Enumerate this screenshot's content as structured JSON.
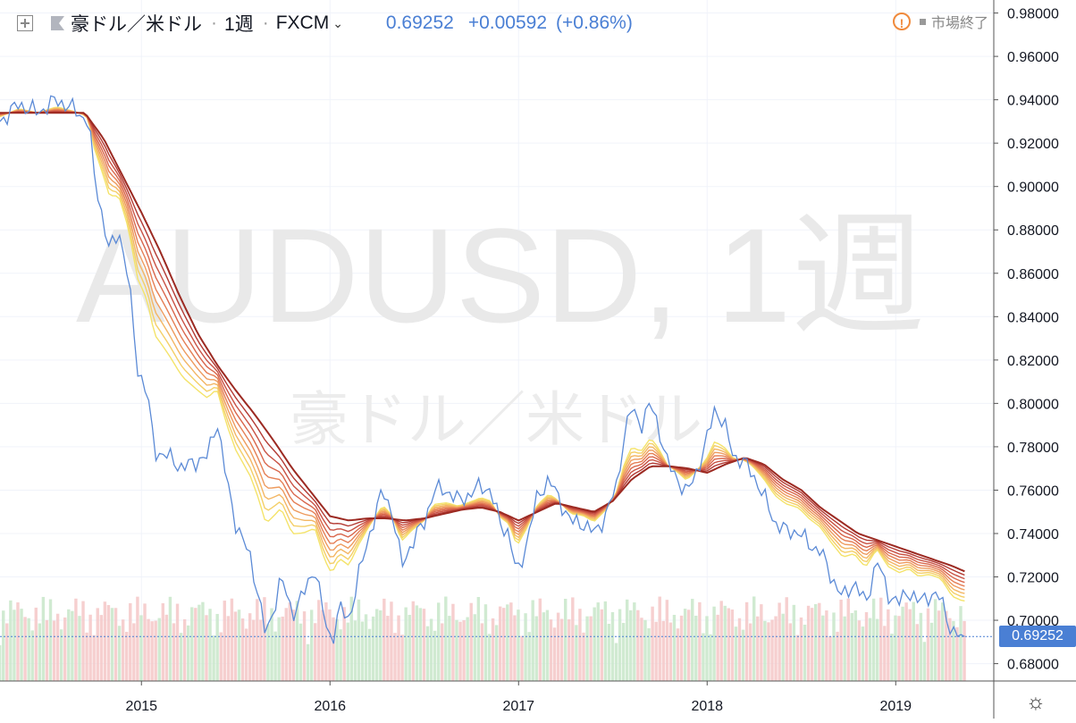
{
  "header": {
    "expand_icon": "square-plus-icon",
    "flag_icon": "flag-icon",
    "symbol": "豪ドル／米ドル",
    "interval": "1週",
    "exchange": "FXCM",
    "dropdown_icon": "chevron-down-icon",
    "last_price": "0.69252",
    "change": "+0.00592",
    "change_pct": "(+0.86%)",
    "market_status": "市場終了",
    "alert_icon": "exclamation-circle-icon"
  },
  "watermark": {
    "line1": "AUDUSD, 1週",
    "line2": "豪ドル／米ドル"
  },
  "settings_icon": "gear-icon",
  "colors": {
    "price": "#5b8ad6",
    "up_volume": "#c8e6c9",
    "down_volume": "#f4c7c7",
    "ribbon": [
      "#f4e36a",
      "#f4cf68",
      "#f3b664",
      "#ee9b5e",
      "#e57f55",
      "#d9674c",
      "#c95244",
      "#b33a33",
      "#9c2a22"
    ]
  },
  "chart_data": {
    "type": "line",
    "x_ticks": [
      "2015",
      "2016",
      "2017",
      "2018",
      "2019"
    ],
    "y_ticks": [
      "0.98000",
      "0.96000",
      "0.94000",
      "0.92000",
      "0.90000",
      "0.88000",
      "0.86000",
      "0.84000",
      "0.82000",
      "0.80000",
      "0.78000",
      "0.76000",
      "0.74000",
      "0.72000",
      "0.70000",
      "0.68000"
    ],
    "ylim": [
      0.672,
      0.986
    ],
    "last_value_label": "0.69252",
    "price_anchors": [
      [
        2014.25,
        0.93
      ],
      [
        2014.35,
        0.938
      ],
      [
        2014.45,
        0.934
      ],
      [
        2014.55,
        0.94
      ],
      [
        2014.65,
        0.935
      ],
      [
        2014.72,
        0.93
      ],
      [
        2014.75,
        0.905
      ],
      [
        2014.83,
        0.87
      ],
      [
        2014.88,
        0.88
      ],
      [
        2014.93,
        0.858
      ],
      [
        2014.98,
        0.816
      ],
      [
        2015.03,
        0.805
      ],
      [
        2015.07,
        0.778
      ],
      [
        2015.15,
        0.775
      ],
      [
        2015.22,
        0.77
      ],
      [
        2015.3,
        0.774
      ],
      [
        2015.35,
        0.775
      ],
      [
        2015.4,
        0.793
      ],
      [
        2015.45,
        0.765
      ],
      [
        2015.5,
        0.745
      ],
      [
        2015.58,
        0.728
      ],
      [
        2015.62,
        0.712
      ],
      [
        2015.66,
        0.692
      ],
      [
        2015.7,
        0.705
      ],
      [
        2015.74,
        0.72
      ],
      [
        2015.8,
        0.703
      ],
      [
        2015.86,
        0.712
      ],
      [
        2015.92,
        0.725
      ],
      [
        2015.97,
        0.7
      ],
      [
        2016.01,
        0.69
      ],
      [
        2016.05,
        0.706
      ],
      [
        2016.1,
        0.7
      ],
      [
        2016.15,
        0.72
      ],
      [
        2016.22,
        0.743
      ],
      [
        2016.28,
        0.76
      ],
      [
        2016.33,
        0.75
      ],
      [
        2016.38,
        0.725
      ],
      [
        2016.43,
        0.735
      ],
      [
        2016.5,
        0.745
      ],
      [
        2016.55,
        0.76
      ],
      [
        2016.62,
        0.76
      ],
      [
        2016.68,
        0.755
      ],
      [
        2016.74,
        0.758
      ],
      [
        2016.8,
        0.762
      ],
      [
        2016.85,
        0.76
      ],
      [
        2016.9,
        0.745
      ],
      [
        2016.95,
        0.74
      ],
      [
        2016.99,
        0.72
      ],
      [
        2017.04,
        0.735
      ],
      [
        2017.1,
        0.757
      ],
      [
        2017.16,
        0.765
      ],
      [
        2017.22,
        0.755
      ],
      [
        2017.28,
        0.745
      ],
      [
        2017.34,
        0.745
      ],
      [
        2017.4,
        0.74
      ],
      [
        2017.46,
        0.748
      ],
      [
        2017.52,
        0.762
      ],
      [
        2017.56,
        0.785
      ],
      [
        2017.6,
        0.798
      ],
      [
        2017.65,
        0.79
      ],
      [
        2017.7,
        0.8
      ],
      [
        2017.74,
        0.79
      ],
      [
        2017.79,
        0.772
      ],
      [
        2017.84,
        0.766
      ],
      [
        2017.89,
        0.758
      ],
      [
        2017.94,
        0.768
      ],
      [
        2017.99,
        0.78
      ],
      [
        2018.04,
        0.798
      ],
      [
        2018.09,
        0.79
      ],
      [
        2018.14,
        0.776
      ],
      [
        2018.19,
        0.773
      ],
      [
        2018.24,
        0.768
      ],
      [
        2018.3,
        0.757
      ],
      [
        2018.36,
        0.745
      ],
      [
        2018.42,
        0.741
      ],
      [
        2018.48,
        0.741
      ],
      [
        2018.54,
        0.735
      ],
      [
        2018.6,
        0.732
      ],
      [
        2018.66,
        0.72
      ],
      [
        2018.72,
        0.71
      ],
      [
        2018.78,
        0.718
      ],
      [
        2018.84,
        0.707
      ],
      [
        2018.9,
        0.728
      ],
      [
        2018.96,
        0.712
      ],
      [
        2019.02,
        0.708
      ],
      [
        2019.07,
        0.714
      ],
      [
        2019.12,
        0.708
      ],
      [
        2019.18,
        0.712
      ],
      [
        2019.24,
        0.71
      ],
      [
        2019.3,
        0.694
      ],
      [
        2019.35,
        0.692
      ],
      [
        2019.38,
        0.6925
      ]
    ],
    "ribbon_anchors": [
      [
        2014.25,
        0.934
      ],
      [
        2014.7,
        0.934
      ],
      [
        2014.8,
        0.922
      ],
      [
        2014.9,
        0.905
      ],
      [
        2015.0,
        0.888
      ],
      [
        2015.1,
        0.87
      ],
      [
        2015.2,
        0.85
      ],
      [
        2015.3,
        0.832
      ],
      [
        2015.4,
        0.818
      ],
      [
        2015.5,
        0.806
      ],
      [
        2015.6,
        0.795
      ],
      [
        2015.7,
        0.783
      ],
      [
        2015.8,
        0.77
      ],
      [
        2015.9,
        0.759
      ],
      [
        2016.0,
        0.748
      ],
      [
        2016.1,
        0.746
      ],
      [
        2016.2,
        0.747
      ],
      [
        2016.3,
        0.747
      ],
      [
        2016.4,
        0.746
      ],
      [
        2016.5,
        0.747
      ],
      [
        2016.6,
        0.749
      ],
      [
        2016.7,
        0.751
      ],
      [
        2016.8,
        0.752
      ],
      [
        2016.9,
        0.75
      ],
      [
        2017.0,
        0.746
      ],
      [
        2017.1,
        0.75
      ],
      [
        2017.2,
        0.754
      ],
      [
        2017.3,
        0.752
      ],
      [
        2017.4,
        0.75
      ],
      [
        2017.5,
        0.755
      ],
      [
        2017.6,
        0.765
      ],
      [
        2017.7,
        0.771
      ],
      [
        2017.8,
        0.771
      ],
      [
        2017.9,
        0.77
      ],
      [
        2018.0,
        0.768
      ],
      [
        2018.1,
        0.772
      ],
      [
        2018.2,
        0.775
      ],
      [
        2018.3,
        0.772
      ],
      [
        2018.4,
        0.765
      ],
      [
        2018.5,
        0.76
      ],
      [
        2018.6,
        0.752
      ],
      [
        2018.7,
        0.746
      ],
      [
        2018.8,
        0.74
      ],
      [
        2018.9,
        0.737
      ],
      [
        2019.0,
        0.734
      ],
      [
        2019.1,
        0.731
      ],
      [
        2019.2,
        0.728
      ],
      [
        2019.3,
        0.725
      ],
      [
        2019.38,
        0.722
      ]
    ]
  }
}
